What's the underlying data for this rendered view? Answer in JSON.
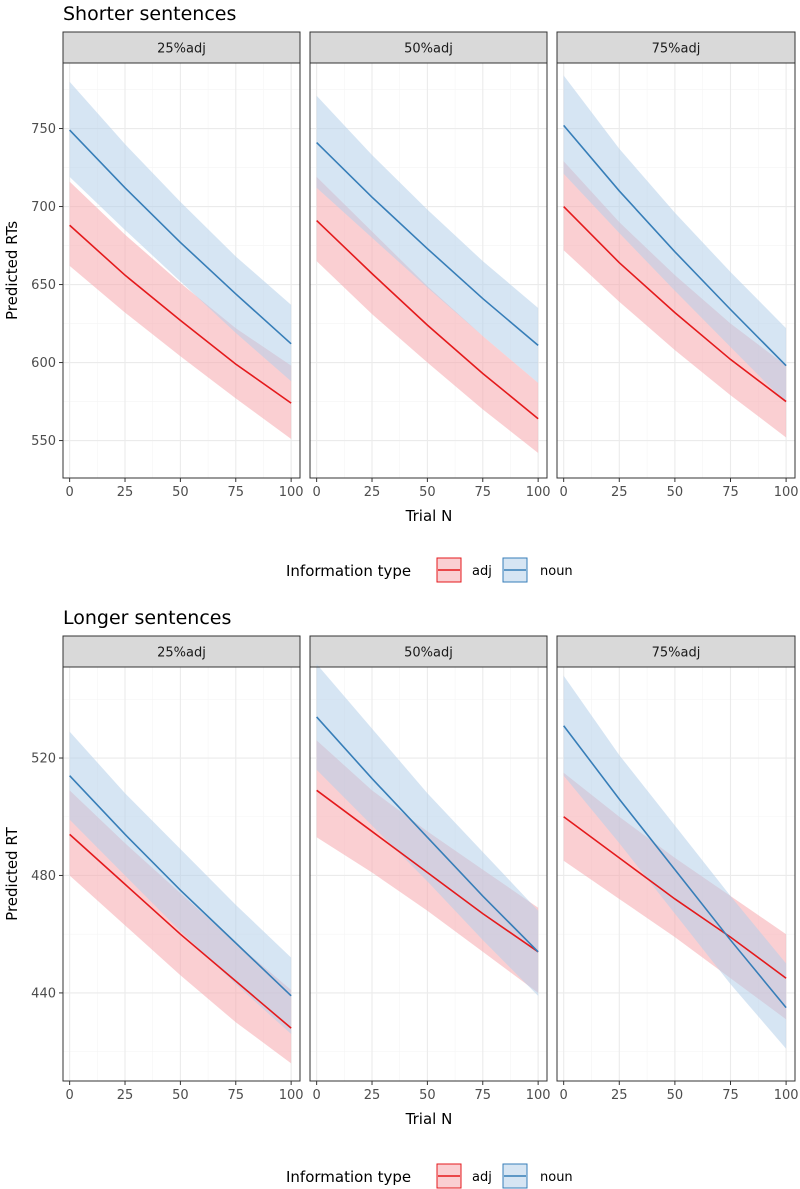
{
  "chart_data": [
    {
      "type": "line",
      "title": "Shorter sentences",
      "xlabel": "Trial N",
      "ylabel": "Predicted RTs",
      "xlim": [
        -3,
        104
      ],
      "ylim": [
        526,
        792
      ],
      "xticks": [
        0,
        25,
        50,
        75,
        100
      ],
      "yticks": [
        550,
        600,
        650,
        700,
        750
      ],
      "legend_title": "Information type",
      "legend_position": "bottom",
      "panels": [
        {
          "label": "25%adj",
          "series": [
            {
              "name": "adj",
              "x": [
                0,
                25,
                50,
                75,
                100
              ],
              "y": [
                688,
                656,
                627,
                599,
                574
              ],
              "lower": [
                662,
                632,
                604,
                577,
                551
              ],
              "upper": [
                716,
                682,
                651,
                622,
                598
              ]
            },
            {
              "name": "noun",
              "x": [
                0,
                25,
                50,
                75,
                100
              ],
              "y": [
                749,
                712,
                677,
                644,
                612
              ],
              "lower": [
                719,
                685,
                652,
                619,
                588
              ],
              "upper": [
                780,
                740,
                703,
                668,
                637
              ]
            }
          ]
        },
        {
          "label": "50%adj",
          "series": [
            {
              "name": "adj",
              "x": [
                0,
                25,
                50,
                75,
                100
              ],
              "y": [
                691,
                657,
                624,
                593,
                564
              ],
              "lower": [
                665,
                631,
                600,
                570,
                542
              ],
              "upper": [
                719,
                684,
                649,
                617,
                587
              ]
            },
            {
              "name": "noun",
              "x": [
                0,
                25,
                50,
                75,
                100
              ],
              "y": [
                741,
                706,
                673,
                641,
                611
              ],
              "lower": [
                712,
                680,
                648,
                617,
                587
              ],
              "upper": [
                771,
                733,
                698,
                665,
                635
              ]
            }
          ]
        },
        {
          "label": "75%adj",
          "series": [
            {
              "name": "adj",
              "x": [
                0,
                25,
                50,
                75,
                100
              ],
              "y": [
                700,
                664,
                632,
                602,
                575
              ],
              "lower": [
                672,
                639,
                608,
                579,
                552
              ],
              "upper": [
                729,
                690,
                656,
                625,
                598
              ]
            },
            {
              "name": "noun",
              "x": [
                0,
                25,
                50,
                75,
                100
              ],
              "y": [
                752,
                710,
                671,
                634,
                598
              ],
              "lower": [
                721,
                683,
                646,
                610,
                574
              ],
              "upper": [
                784,
                737,
                696,
                658,
                622
              ]
            }
          ]
        }
      ]
    },
    {
      "type": "line",
      "title": "Longer sentences",
      "xlabel": "Trial N",
      "ylabel": "Predicted RT",
      "xlim": [
        -3,
        104
      ],
      "ylim": [
        410,
        551
      ],
      "xticks": [
        0,
        25,
        50,
        75,
        100
      ],
      "yticks": [
        440,
        480,
        520
      ],
      "legend_title": "Information type",
      "legend_position": "bottom",
      "panels": [
        {
          "label": "25%adj",
          "series": [
            {
              "name": "adj",
              "x": [
                0,
                25,
                50,
                75,
                100
              ],
              "y": [
                494,
                477,
                460,
                444,
                428
              ],
              "lower": [
                480,
                463,
                446,
                430,
                416
              ],
              "upper": [
                509,
                491,
                474,
                457,
                441
              ]
            },
            {
              "name": "noun",
              "x": [
                0,
                25,
                50,
                75,
                100
              ],
              "y": [
                514,
                494,
                475,
                457,
                439
              ],
              "lower": [
                499,
                480,
                461,
                443,
                426
              ],
              "upper": [
                529,
                508,
                489,
                470,
                452
              ]
            }
          ]
        },
        {
          "label": "50%adj",
          "series": [
            {
              "name": "adj",
              "x": [
                0,
                25,
                50,
                75,
                100
              ],
              "y": [
                509,
                495,
                481,
                467,
                454
              ],
              "lower": [
                493,
                481,
                468,
                454,
                440
              ],
              "upper": [
                526,
                509,
                495,
                482,
                469
              ]
            },
            {
              "name": "noun",
              "x": [
                0,
                25,
                50,
                75,
                100
              ],
              "y": [
                534,
                513,
                493,
                473,
                454
              ],
              "lower": [
                516,
                497,
                478,
                458,
                439
              ],
              "upper": [
                552,
                530,
                508,
                488,
                468
              ]
            }
          ]
        },
        {
          "label": "75%adj",
          "series": [
            {
              "name": "adj",
              "x": [
                0,
                25,
                50,
                75,
                100
              ],
              "y": [
                500,
                486,
                472,
                459,
                445
              ],
              "lower": [
                485,
                472,
                459,
                445,
                431
              ],
              "upper": [
                515,
                500,
                486,
                473,
                460
              ]
            },
            {
              "name": "noun",
              "x": [
                0,
                25,
                50,
                75,
                100
              ],
              "y": [
                531,
                506,
                482,
                458,
                435
              ],
              "lower": [
                514,
                491,
                467,
                443,
                421
              ],
              "upper": [
                548,
                521,
                497,
                473,
                450
              ]
            }
          ]
        }
      ]
    }
  ],
  "legend_items": [
    {
      "name": "adj",
      "label": "adj"
    },
    {
      "name": "noun",
      "label": "noun"
    }
  ],
  "colors": {
    "adj_line": "#e41a1c",
    "adj_ribbon": "#f6a8ad",
    "noun_line": "#377eb8",
    "noun_ribbon": "#b5cfea",
    "strip_bg": "#d9d9d9",
    "panel_border": "#333333",
    "grid_major": "#ebebeb",
    "grid_minor": "#f5f5f5"
  }
}
